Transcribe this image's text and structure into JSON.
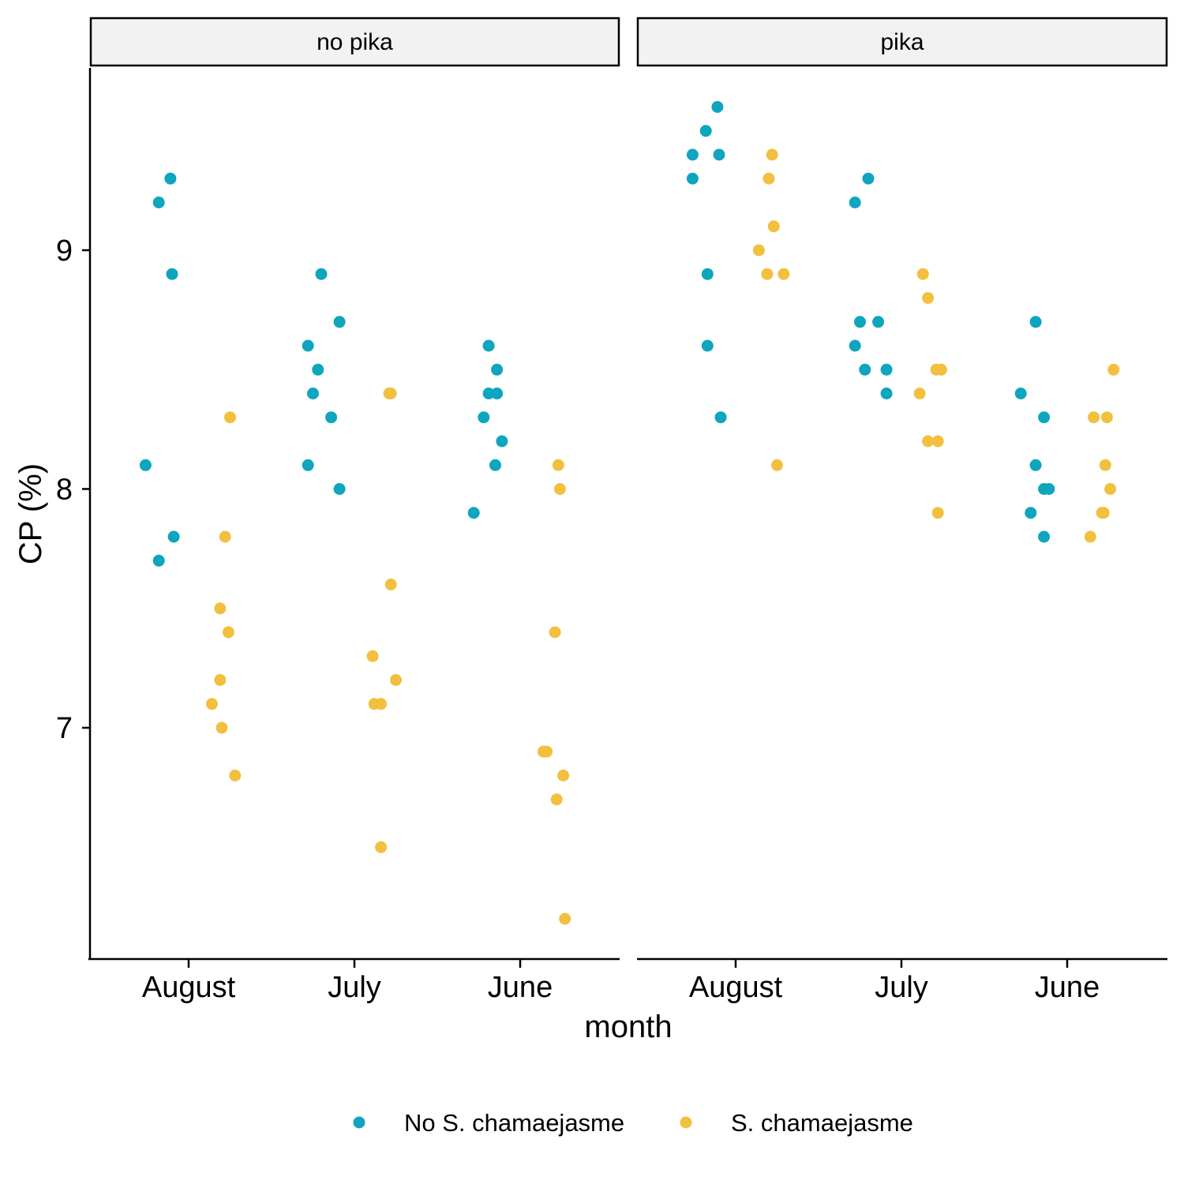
{
  "chart_data": {
    "type": "scatter",
    "xlabel": "month",
    "ylabel": "CP (%)",
    "categories": [
      "August",
      "July",
      "June"
    ],
    "yticks": [
      7,
      8,
      9
    ],
    "ylim": [
      6.15,
      9.75
    ],
    "legend_position": "bottom",
    "facets": [
      {
        "label": "no pika",
        "series": [
          {
            "name": "No S. chamaejasme",
            "color": "#0EA5BF",
            "points": [
              {
                "x": "August",
                "jitter": -0.26,
                "y": 8.1
              },
              {
                "x": "August",
                "jitter": -0.18,
                "y": 9.2
              },
              {
                "x": "August",
                "jitter": -0.11,
                "y": 9.3
              },
              {
                "x": "August",
                "jitter": -0.1,
                "y": 8.9
              },
              {
                "x": "August",
                "jitter": -0.09,
                "y": 7.8
              },
              {
                "x": "August",
                "jitter": -0.18,
                "y": 7.7
              },
              {
                "x": "July",
                "jitter": -0.28,
                "y": 8.6
              },
              {
                "x": "July",
                "jitter": -0.25,
                "y": 8.4
              },
              {
                "x": "July",
                "jitter": -0.22,
                "y": 8.5
              },
              {
                "x": "July",
                "jitter": -0.2,
                "y": 8.9
              },
              {
                "x": "July",
                "jitter": -0.14,
                "y": 8.3
              },
              {
                "x": "July",
                "jitter": -0.09,
                "y": 8.7
              },
              {
                "x": "July",
                "jitter": -0.28,
                "y": 8.1
              },
              {
                "x": "July",
                "jitter": -0.09,
                "y": 8.0
              },
              {
                "x": "June",
                "jitter": -0.19,
                "y": 8.6
              },
              {
                "x": "June",
                "jitter": -0.19,
                "y": 8.4
              },
              {
                "x": "June",
                "jitter": -0.14,
                "y": 8.5
              },
              {
                "x": "June",
                "jitter": -0.14,
                "y": 8.4
              },
              {
                "x": "June",
                "jitter": -0.22,
                "y": 8.3
              },
              {
                "x": "June",
                "jitter": -0.11,
                "y": 8.2
              },
              {
                "x": "June",
                "jitter": -0.15,
                "y": 8.1
              },
              {
                "x": "June",
                "jitter": -0.28,
                "y": 7.9
              }
            ]
          },
          {
            "name": "S. chamaejasme",
            "color": "#F2C03E",
            "points": [
              {
                "x": "August",
                "jitter": 0.25,
                "y": 8.3
              },
              {
                "x": "August",
                "jitter": 0.22,
                "y": 7.8
              },
              {
                "x": "August",
                "jitter": 0.19,
                "y": 7.5
              },
              {
                "x": "August",
                "jitter": 0.24,
                "y": 7.4
              },
              {
                "x": "August",
                "jitter": 0.19,
                "y": 7.2
              },
              {
                "x": "August",
                "jitter": 0.14,
                "y": 7.1
              },
              {
                "x": "August",
                "jitter": 0.2,
                "y": 7.0
              },
              {
                "x": "August",
                "jitter": 0.28,
                "y": 6.8
              },
              {
                "x": "July",
                "jitter": 0.21,
                "y": 8.4
              },
              {
                "x": "July",
                "jitter": 0.22,
                "y": 8.4
              },
              {
                "x": "July",
                "jitter": 0.22,
                "y": 7.6
              },
              {
                "x": "July",
                "jitter": 0.11,
                "y": 7.3
              },
              {
                "x": "July",
                "jitter": 0.25,
                "y": 7.2
              },
              {
                "x": "July",
                "jitter": 0.12,
                "y": 7.1
              },
              {
                "x": "July",
                "jitter": 0.16,
                "y": 7.1
              },
              {
                "x": "July",
                "jitter": 0.16,
                "y": 6.5
              },
              {
                "x": "June",
                "jitter": 0.23,
                "y": 8.1
              },
              {
                "x": "June",
                "jitter": 0.24,
                "y": 8.0
              },
              {
                "x": "June",
                "jitter": 0.21,
                "y": 7.4
              },
              {
                "x": "June",
                "jitter": 0.14,
                "y": 6.9
              },
              {
                "x": "June",
                "jitter": 0.16,
                "y": 6.9
              },
              {
                "x": "June",
                "jitter": 0.26,
                "y": 6.8
              },
              {
                "x": "June",
                "jitter": 0.22,
                "y": 6.7
              },
              {
                "x": "June",
                "jitter": 0.27,
                "y": 6.2
              }
            ]
          }
        ]
      },
      {
        "label": "pika",
        "series": [
          {
            "name": "No S. chamaejasme",
            "color": "#0EA5BF",
            "points": [
              {
                "x": "August",
                "jitter": -0.11,
                "y": 9.6
              },
              {
                "x": "August",
                "jitter": -0.18,
                "y": 9.5
              },
              {
                "x": "August",
                "jitter": -0.26,
                "y": 9.4
              },
              {
                "x": "August",
                "jitter": -0.1,
                "y": 9.4
              },
              {
                "x": "August",
                "jitter": -0.26,
                "y": 9.3
              },
              {
                "x": "August",
                "jitter": -0.17,
                "y": 8.9
              },
              {
                "x": "August",
                "jitter": -0.17,
                "y": 8.6
              },
              {
                "x": "August",
                "jitter": -0.09,
                "y": 8.3
              },
              {
                "x": "July",
                "jitter": -0.2,
                "y": 9.3
              },
              {
                "x": "July",
                "jitter": -0.28,
                "y": 9.2
              },
              {
                "x": "July",
                "jitter": -0.25,
                "y": 8.7
              },
              {
                "x": "July",
                "jitter": -0.14,
                "y": 8.7
              },
              {
                "x": "July",
                "jitter": -0.28,
                "y": 8.6
              },
              {
                "x": "July",
                "jitter": -0.22,
                "y": 8.5
              },
              {
                "x": "July",
                "jitter": -0.09,
                "y": 8.5
              },
              {
                "x": "July",
                "jitter": -0.09,
                "y": 8.4
              },
              {
                "x": "June",
                "jitter": -0.19,
                "y": 8.7
              },
              {
                "x": "June",
                "jitter": -0.28,
                "y": 8.4
              },
              {
                "x": "June",
                "jitter": -0.14,
                "y": 8.3
              },
              {
                "x": "June",
                "jitter": -0.19,
                "y": 8.1
              },
              {
                "x": "June",
                "jitter": -0.14,
                "y": 8.0
              },
              {
                "x": "June",
                "jitter": -0.11,
                "y": 8.0
              },
              {
                "x": "June",
                "jitter": -0.22,
                "y": 7.9
              },
              {
                "x": "June",
                "jitter": -0.14,
                "y": 7.8
              }
            ]
          },
          {
            "name": "S. chamaejasme",
            "color": "#F2C03E",
            "points": [
              {
                "x": "August",
                "jitter": 0.22,
                "y": 9.4
              },
              {
                "x": "August",
                "jitter": 0.2,
                "y": 9.3
              },
              {
                "x": "August",
                "jitter": 0.23,
                "y": 9.1
              },
              {
                "x": "August",
                "jitter": 0.14,
                "y": 9.0
              },
              {
                "x": "August",
                "jitter": 0.19,
                "y": 8.9
              },
              {
                "x": "August",
                "jitter": 0.29,
                "y": 8.9
              },
              {
                "x": "August",
                "jitter": 0.25,
                "y": 8.1
              },
              {
                "x": "July",
                "jitter": 0.13,
                "y": 8.9
              },
              {
                "x": "July",
                "jitter": 0.16,
                "y": 8.8
              },
              {
                "x": "July",
                "jitter": 0.21,
                "y": 8.5
              },
              {
                "x": "July",
                "jitter": 0.24,
                "y": 8.5
              },
              {
                "x": "July",
                "jitter": 0.11,
                "y": 8.4
              },
              {
                "x": "July",
                "jitter": 0.16,
                "y": 8.2
              },
              {
                "x": "July",
                "jitter": 0.22,
                "y": 8.2
              },
              {
                "x": "July",
                "jitter": 0.22,
                "y": 7.9
              },
              {
                "x": "June",
                "jitter": 0.28,
                "y": 8.5
              },
              {
                "x": "June",
                "jitter": 0.16,
                "y": 8.3
              },
              {
                "x": "June",
                "jitter": 0.24,
                "y": 8.3
              },
              {
                "x": "June",
                "jitter": 0.23,
                "y": 8.1
              },
              {
                "x": "June",
                "jitter": 0.26,
                "y": 8.0
              },
              {
                "x": "June",
                "jitter": 0.21,
                "y": 7.9
              },
              {
                "x": "June",
                "jitter": 0.22,
                "y": 7.9
              },
              {
                "x": "June",
                "jitter": 0.14,
                "y": 7.8
              }
            ]
          }
        ]
      }
    ],
    "legend": [
      {
        "name": "No S. chamaejasme",
        "color": "#0EA5BF"
      },
      {
        "name": "S. chamaejasme",
        "color": "#F2C03E"
      }
    ]
  }
}
